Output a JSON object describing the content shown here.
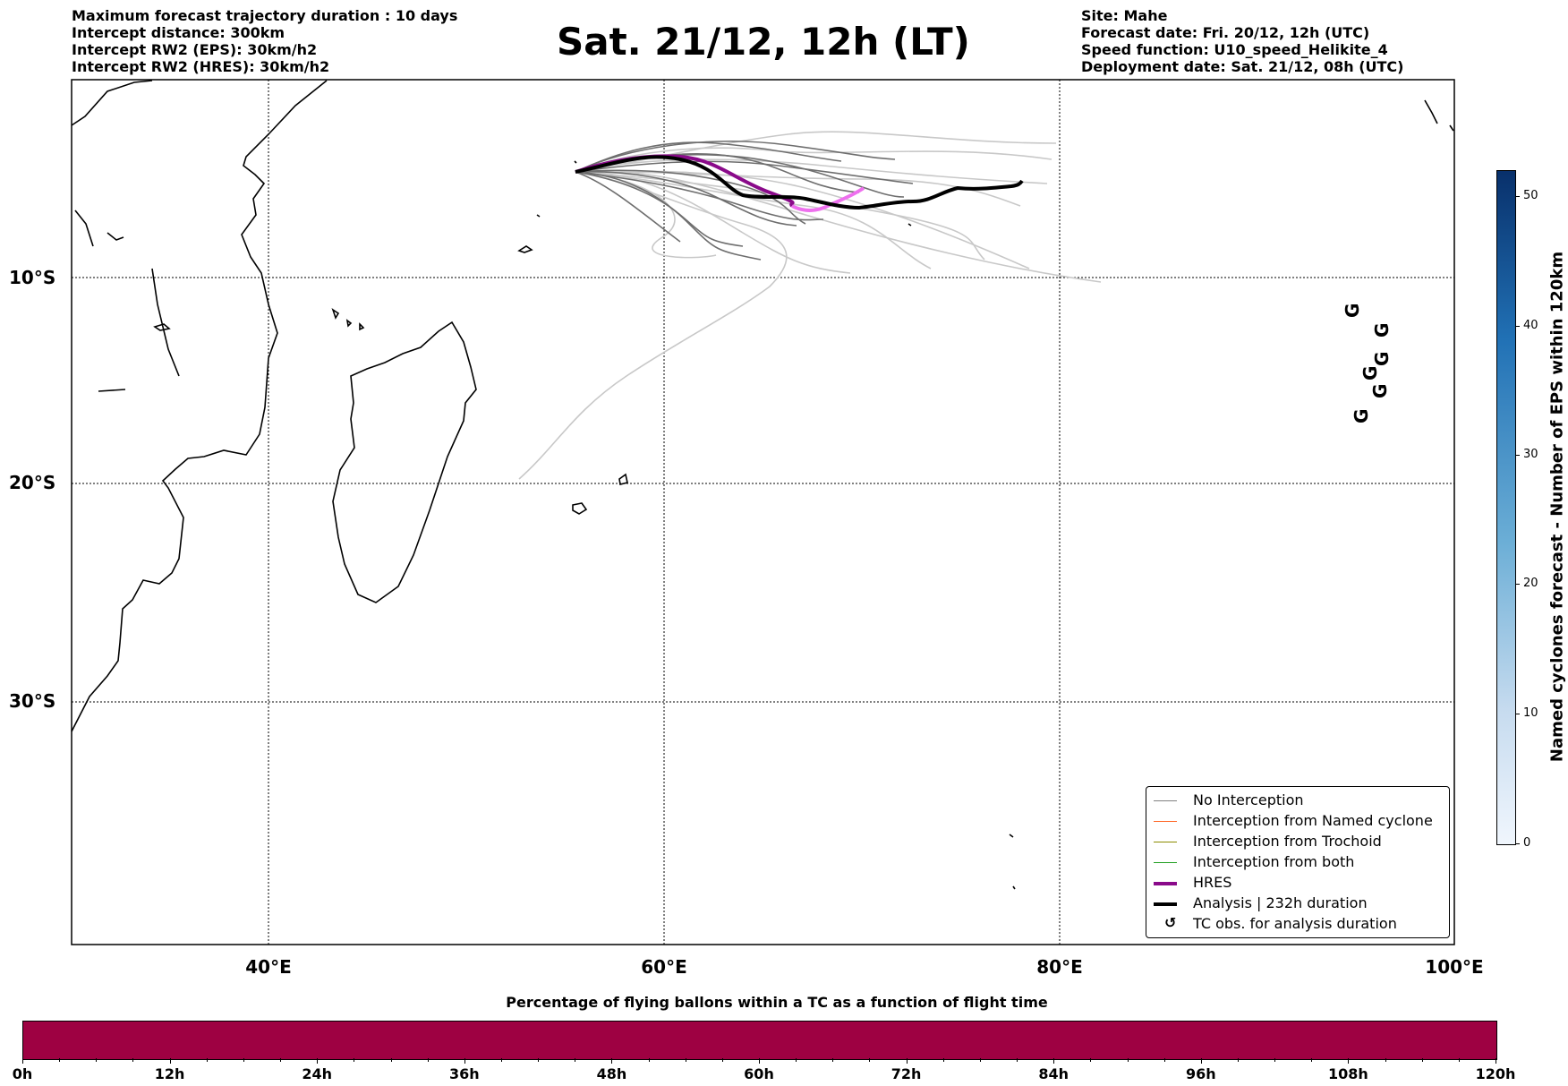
{
  "header": {
    "left": [
      "Maximum forecast trajectory duration : 10 days",
      "Intercept distance: 300km",
      "Intercept RW2 (EPS):  30km/h2",
      "Intercept RW2 (HRES): 30km/h2"
    ],
    "title": "Sat. 21/12, 12h (LT)",
    "right": [
      "Site: Mahe",
      "Forecast date: Fri. 20/12, 12h (UTC)",
      "Speed function: U10_speed_Helikite_4",
      "Deployment date: Sat. 21/12, 08h (UTC)"
    ]
  },
  "map": {
    "lon_range": [
      30,
      100
    ],
    "lat_range": [
      -42,
      0
    ],
    "lat_labels": [
      "10°S",
      "20°S",
      "30°S"
    ],
    "lon_labels": [
      "40°E",
      "60°E",
      "80°E",
      "100°E"
    ],
    "grid": true
  },
  "legend": {
    "items": [
      {
        "label": "No Interception",
        "color": "#808080"
      },
      {
        "label": "Interception from Named cyclone",
        "color": "#ff6a2a"
      },
      {
        "label": "Interception from Trochoid",
        "color": "#8b8b00"
      },
      {
        "label": "Interception from both",
        "color": "#1f9f1f"
      },
      {
        "label": "HRES",
        "color": "#8a0a8a"
      },
      {
        "label": "Analysis | 232h duration",
        "color": "#000000"
      },
      {
        "label": "TC obs. for analysis duration",
        "icon": "tc-symbol-icon"
      }
    ]
  },
  "tc_symbol": "G",
  "colorbar": {
    "label": "Named cyclones forecast - Number of EPS within 120km",
    "ticks": [
      "0",
      "10",
      "20",
      "30",
      "40",
      "50"
    ]
  },
  "progress_bar": {
    "title": "Percentage of flying ballons within a TC as a function of flight time",
    "ticks": [
      "0h",
      "12h",
      "24h",
      "36h",
      "48h",
      "60h",
      "72h",
      "84h",
      "96h",
      "108h",
      "120h"
    ],
    "color": "#9e0142"
  }
}
